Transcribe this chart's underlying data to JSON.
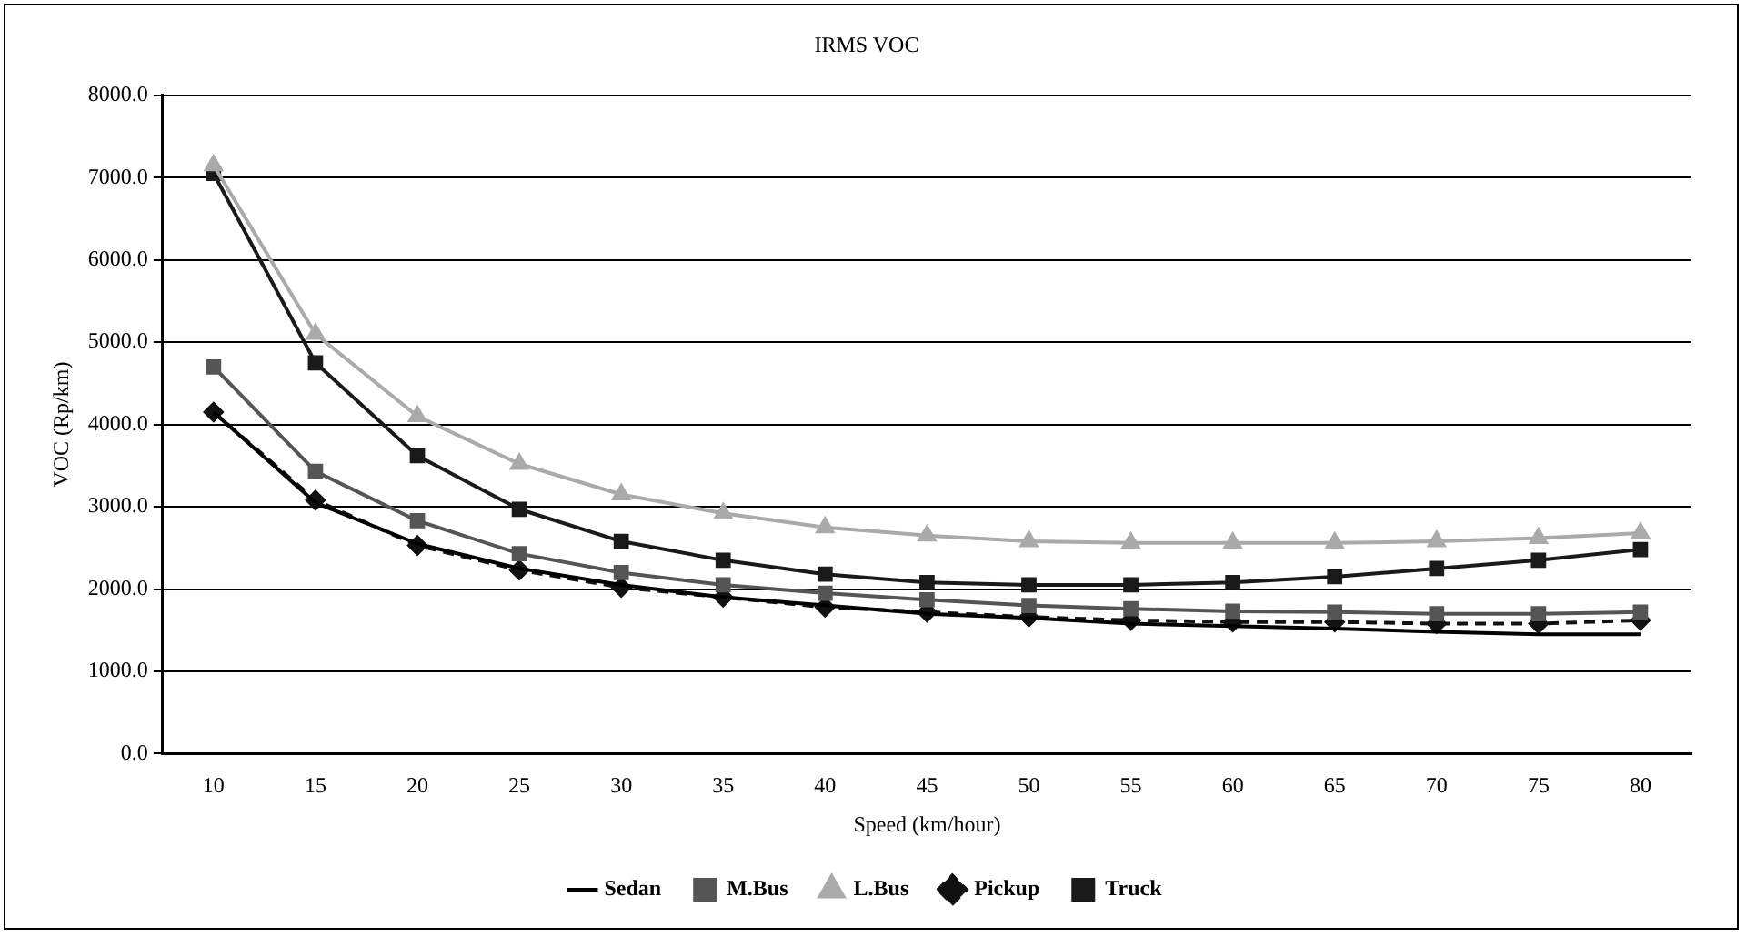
{
  "chart_data": {
    "type": "line",
    "title": "IRMS VOC",
    "xlabel": "Speed (km/hour)",
    "ylabel": "VOC (Rp/km)",
    "categories": [
      "10",
      "15",
      "20",
      "25",
      "30",
      "35",
      "40",
      "45",
      "50",
      "55",
      "60",
      "65",
      "70",
      "75",
      "80"
    ],
    "ylim": [
      0,
      8000
    ],
    "yticks": [
      {
        "value": 0,
        "label": "0.0"
      },
      {
        "value": 1000,
        "label": "1000.0"
      },
      {
        "value": 2000,
        "label": "2000.0"
      },
      {
        "value": 3000,
        "label": "3000.0"
      },
      {
        "value": 4000,
        "label": "4000.0"
      },
      {
        "value": 5000,
        "label": "5000.0"
      },
      {
        "value": 6000,
        "label": "6000.0"
      },
      {
        "value": 7000,
        "label": "7000.0"
      },
      {
        "value": 8000,
        "label": "8000.0"
      }
    ],
    "grid": "y",
    "legend": "bottom",
    "series": [
      {
        "name": "Sedan",
        "color": "#000000",
        "marker": "none",
        "line_style": "solid",
        "values": [
          4150,
          3050,
          2550,
          2250,
          2050,
          1900,
          1800,
          1700,
          1650,
          1580,
          1550,
          1520,
          1480,
          1450,
          1450
        ]
      },
      {
        "name": "M.Bus",
        "color": "#555555",
        "marker": "square",
        "line_style": "solid",
        "values": [
          4700,
          3430,
          2830,
          2430,
          2200,
          2050,
          1950,
          1870,
          1800,
          1760,
          1730,
          1720,
          1700,
          1700,
          1720
        ]
      },
      {
        "name": "L.Bus",
        "color": "#aaaaaa",
        "marker": "triangle",
        "line_style": "solid",
        "values": [
          7150,
          5100,
          4100,
          3520,
          3150,
          2920,
          2750,
          2650,
          2580,
          2560,
          2560,
          2560,
          2580,
          2620,
          2680
        ]
      },
      {
        "name": "Pickup",
        "color": "#111111",
        "marker": "diamond",
        "line_style": "dashed",
        "values": [
          4150,
          3080,
          2530,
          2230,
          2020,
          1900,
          1780,
          1720,
          1660,
          1620,
          1600,
          1600,
          1580,
          1580,
          1620
        ]
      },
      {
        "name": "Truck",
        "color": "#1a1a1a",
        "marker": "square",
        "line_style": "solid",
        "values": [
          7050,
          4750,
          3620,
          2970,
          2580,
          2350,
          2180,
          2080,
          2050,
          2050,
          2080,
          2150,
          2250,
          2350,
          2480
        ]
      }
    ]
  }
}
